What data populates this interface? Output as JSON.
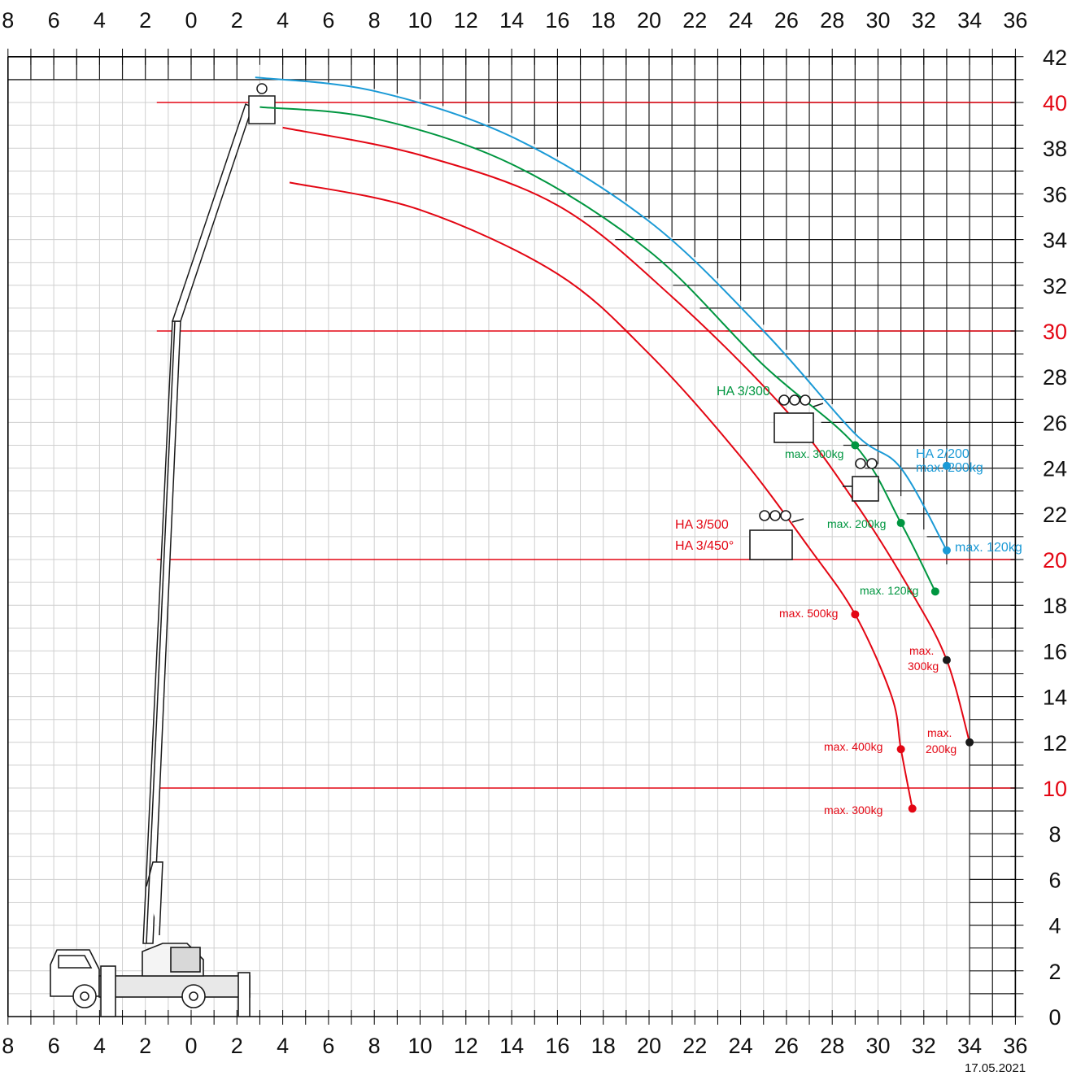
{
  "axes": {
    "x_ticks": [
      "8",
      "6",
      "4",
      "2",
      "0",
      "2",
      "4",
      "6",
      "8",
      "10",
      "12",
      "14",
      "16",
      "18",
      "20",
      "22",
      "24",
      "26",
      "28",
      "30",
      "32",
      "34",
      "36"
    ],
    "x_values": [
      -8,
      -6,
      -4,
      -2,
      0,
      2,
      4,
      6,
      8,
      10,
      12,
      14,
      16,
      18,
      20,
      22,
      24,
      26,
      28,
      30,
      32,
      34,
      36
    ],
    "y_ticks": [
      "0",
      "2",
      "4",
      "6",
      "8",
      "10",
      "12",
      "14",
      "16",
      "18",
      "20",
      "22",
      "24",
      "26",
      "28",
      "30",
      "32",
      "34",
      "36",
      "38",
      "40",
      "42"
    ],
    "y_values": [
      0,
      2,
      4,
      6,
      8,
      10,
      12,
      14,
      16,
      18,
      20,
      22,
      24,
      26,
      28,
      30,
      32,
      34,
      36,
      38,
      40,
      42
    ],
    "highlight_heights": [
      10,
      20,
      30,
      40
    ],
    "xlim": [
      -8,
      36
    ],
    "ylim": [
      0,
      42
    ]
  },
  "colors": {
    "red": "#e30613",
    "green": "#009640",
    "blue": "#1b9ad6",
    "black": "#1a1a1a",
    "grid_light": "#cfcfcf",
    "grid_dark": "#1a1a1a"
  },
  "curves": [
    {
      "color": "blue",
      "points": [
        [
          2.8,
          41.1
        ],
        [
          8,
          40.5
        ],
        [
          14,
          38.5
        ],
        [
          20,
          34.8
        ],
        [
          25,
          30
        ],
        [
          29,
          25.5
        ],
        [
          31,
          24
        ],
        [
          33,
          20.4
        ]
      ]
    },
    {
      "color": "green",
      "points": [
        [
          3,
          39.8
        ],
        [
          8,
          39.3
        ],
        [
          14,
          37.3
        ],
        [
          20,
          33.5
        ],
        [
          25,
          28.5
        ],
        [
          29,
          25
        ],
        [
          31,
          21.6
        ],
        [
          32.5,
          18.6
        ]
      ]
    },
    {
      "color": "red",
      "points": [
        [
          4,
          38.9
        ],
        [
          10,
          37.7
        ],
        [
          16,
          35.5
        ],
        [
          21,
          31.5
        ],
        [
          26,
          26.5
        ],
        [
          29,
          22.5
        ],
        [
          31.5,
          18.5
        ],
        [
          33,
          15.6
        ],
        [
          34,
          12
        ]
      ]
    },
    {
      "color": "red",
      "points": [
        [
          4.3,
          36.5
        ],
        [
          10,
          35.3
        ],
        [
          16,
          32.5
        ],
        [
          20,
          29
        ],
        [
          24,
          24.5
        ],
        [
          27,
          20.5
        ],
        [
          29,
          17.6
        ],
        [
          30.6,
          14
        ],
        [
          31,
          11.7
        ],
        [
          31.5,
          9.1
        ]
      ]
    }
  ],
  "points": [
    {
      "x": 33,
      "y": 24.1,
      "color": "blue"
    },
    {
      "x": 33,
      "y": 20.4,
      "color": "blue"
    },
    {
      "x": 29,
      "y": 25,
      "color": "green"
    },
    {
      "x": 31,
      "y": 21.6,
      "color": "green"
    },
    {
      "x": 32.5,
      "y": 18.6,
      "color": "green"
    },
    {
      "x": 33,
      "y": 15.6,
      "color": "black"
    },
    {
      "x": 34,
      "y": 12,
      "color": "black"
    },
    {
      "x": 29,
      "y": 17.6,
      "color": "red"
    },
    {
      "x": 31,
      "y": 11.7,
      "color": "red"
    },
    {
      "x": 31.5,
      "y": 9.1,
      "color": "red"
    }
  ],
  "labels": {
    "ha_2_200": "HA 2/200",
    "ha_2_200_max": "max. 200kg",
    "blue_max_120": "max. 120kg",
    "ha_3_300": "HA 3/300",
    "green_max_300": "max. 300kg",
    "green_max_200": "max. 200kg",
    "green_max_120": "max. 120kg",
    "ha_3_500": "HA 3/500",
    "ha_3_450": "HA 3/450°",
    "black_max_300_a": "max.",
    "black_max_300_b": "300kg",
    "black_max_200_a": "max.",
    "black_max_200_b": "200kg",
    "red_max_500": "max. 500kg",
    "red_max_400": "max. 400kg",
    "red_max_300": "max. 300kg"
  },
  "date": "17.05.2021"
}
